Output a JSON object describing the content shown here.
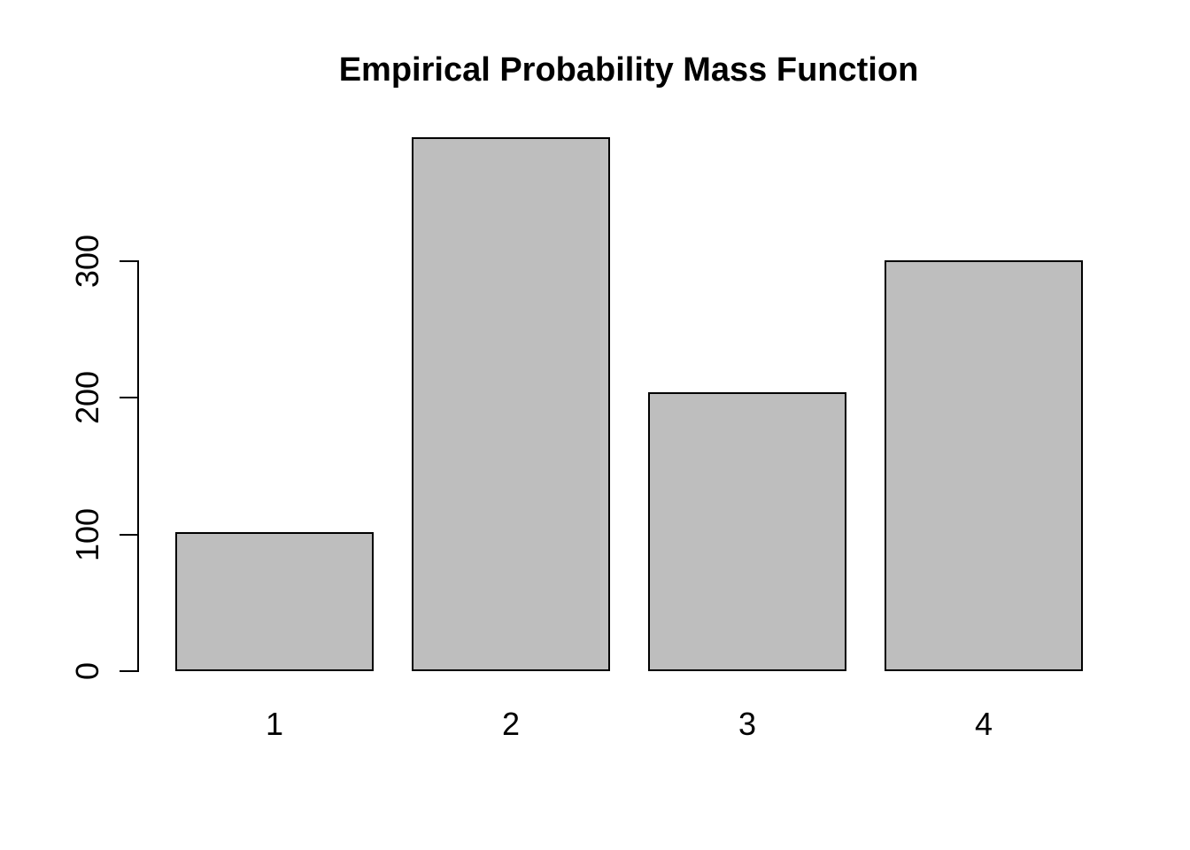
{
  "chart_data": {
    "type": "bar",
    "title": "Empirical Probability Mass Function",
    "categories": [
      "1",
      "2",
      "3",
      "4"
    ],
    "values": [
      102,
      391,
      204,
      301
    ],
    "xlabel": "",
    "ylabel": "",
    "y_ticks": [
      0,
      100,
      200,
      300
    ],
    "ylim": [
      0,
      391
    ],
    "grid": false,
    "legend": false,
    "bar_fill": "#bebebe",
    "bar_border": "#000000",
    "axis_color": "#000000",
    "background": "#ffffff"
  }
}
